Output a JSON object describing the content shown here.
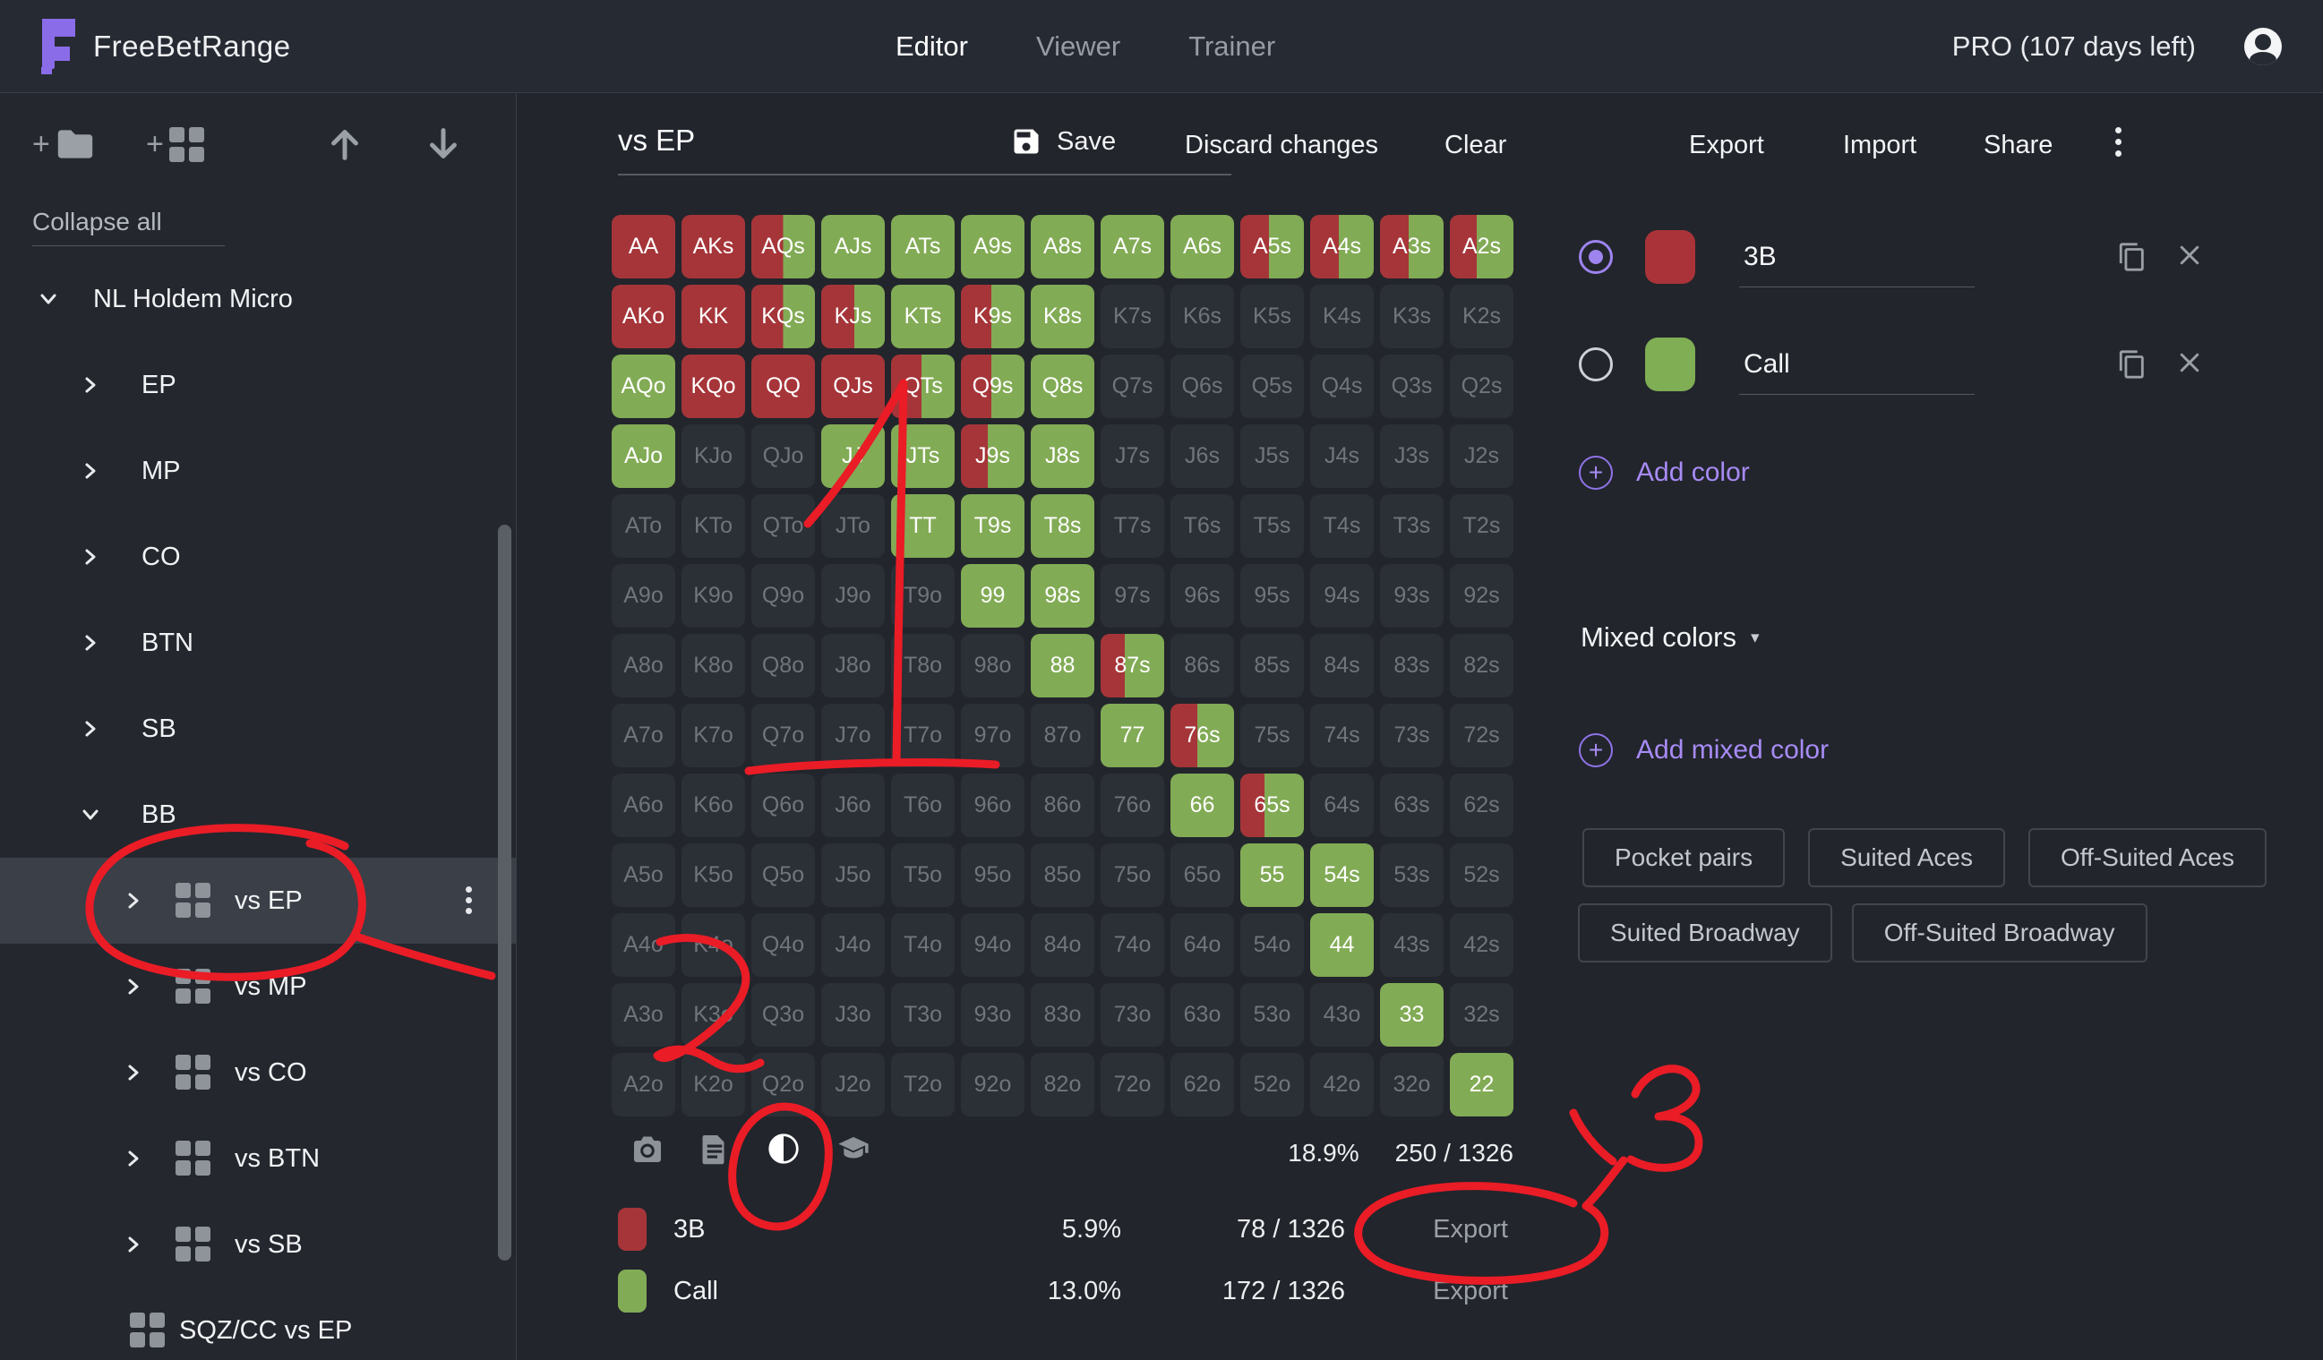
{
  "topbar": {
    "brand": "FreeBetRange",
    "tabs": [
      {
        "label": "Editor",
        "active": true
      },
      {
        "label": "Viewer",
        "active": false
      },
      {
        "label": "Trainer",
        "active": false
      }
    ],
    "plan": "PRO (107 days left)"
  },
  "sidebar": {
    "collapse_all": "Collapse all",
    "tree": [
      {
        "label": "NL Holdem Micro",
        "level": 0,
        "chevron": "down",
        "icon": false,
        "selected": false,
        "kebab": false
      },
      {
        "label": "EP",
        "level": 1,
        "chevron": "right",
        "icon": false,
        "selected": false,
        "kebab": false
      },
      {
        "label": "MP",
        "level": 1,
        "chevron": "right",
        "icon": false,
        "selected": false,
        "kebab": false
      },
      {
        "label": "CO",
        "level": 1,
        "chevron": "right",
        "icon": false,
        "selected": false,
        "kebab": false
      },
      {
        "label": "BTN",
        "level": 1,
        "chevron": "right",
        "icon": false,
        "selected": false,
        "kebab": false
      },
      {
        "label": "SB",
        "level": 1,
        "chevron": "right",
        "icon": false,
        "selected": false,
        "kebab": false
      },
      {
        "label": "BB",
        "level": 1,
        "chevron": "down",
        "icon": false,
        "selected": false,
        "kebab": false
      },
      {
        "label": "vs EP",
        "level": 2,
        "chevron": "right",
        "icon": true,
        "selected": true,
        "kebab": true
      },
      {
        "label": "vs MP",
        "level": 2,
        "chevron": "right",
        "icon": true,
        "selected": false,
        "kebab": false
      },
      {
        "label": "vs CO",
        "level": 2,
        "chevron": "right",
        "icon": true,
        "selected": false,
        "kebab": false
      },
      {
        "label": "vs BTN",
        "level": 2,
        "chevron": "right",
        "icon": true,
        "selected": false,
        "kebab": false
      },
      {
        "label": "vs SB",
        "level": 2,
        "chevron": "right",
        "icon": true,
        "selected": false,
        "kebab": false
      },
      {
        "label": "SQZ/CC vs EP",
        "level": 2,
        "chevron": null,
        "icon": true,
        "selected": false,
        "kebab": false
      }
    ]
  },
  "toolbar": {
    "title": "vs EP",
    "save_label": "Save",
    "discard_label": "Discard changes",
    "clear_label": "Clear",
    "export_label": "Export",
    "import_label": "Import",
    "share_label": "Share"
  },
  "grid": {
    "rows": [
      [
        [
          "AA",
          "r"
        ],
        [
          "AKs",
          "r"
        ],
        [
          "AQs",
          "s",
          50
        ],
        [
          "AJs",
          "g"
        ],
        [
          "ATs",
          "g"
        ],
        [
          "A9s",
          "g"
        ],
        [
          "A8s",
          "g"
        ],
        [
          "A7s",
          "g"
        ],
        [
          "A6s",
          "g"
        ],
        [
          "A5s",
          "s",
          45
        ],
        [
          "A4s",
          "s",
          45
        ],
        [
          "A3s",
          "s",
          45
        ],
        [
          "A2s",
          "s",
          42
        ]
      ],
      [
        [
          "AKo",
          "r"
        ],
        [
          "KK",
          "r"
        ],
        [
          "KQs",
          "s",
          50
        ],
        [
          "KJs",
          "s",
          52
        ],
        [
          "KTs",
          "g"
        ],
        [
          "K9s",
          "s",
          48
        ],
        [
          "K8s",
          "g"
        ],
        [
          "K7s",
          "o"
        ],
        [
          "K6s",
          "o"
        ],
        [
          "K5s",
          "o"
        ],
        [
          "K4s",
          "o"
        ],
        [
          "K3s",
          "o"
        ],
        [
          "K2s",
          "o"
        ]
      ],
      [
        [
          "AQo",
          "g"
        ],
        [
          "KQo",
          "r"
        ],
        [
          "QQ",
          "r"
        ],
        [
          "QJs",
          "r"
        ],
        [
          "QTs",
          "s",
          48
        ],
        [
          "Q9s",
          "s",
          48
        ],
        [
          "Q8s",
          "g"
        ],
        [
          "Q7s",
          "o"
        ],
        [
          "Q6s",
          "o"
        ],
        [
          "Q5s",
          "o"
        ],
        [
          "Q4s",
          "o"
        ],
        [
          "Q3s",
          "o"
        ],
        [
          "Q2s",
          "o"
        ]
      ],
      [
        [
          "AJo",
          "g"
        ],
        [
          "KJo",
          "o"
        ],
        [
          "QJo",
          "o"
        ],
        [
          "JJ",
          "g"
        ],
        [
          "JTs",
          "g"
        ],
        [
          "J9s",
          "s",
          42
        ],
        [
          "J8s",
          "g"
        ],
        [
          "J7s",
          "o"
        ],
        [
          "J6s",
          "o"
        ],
        [
          "J5s",
          "o"
        ],
        [
          "J4s",
          "o"
        ],
        [
          "J3s",
          "o"
        ],
        [
          "J2s",
          "o"
        ]
      ],
      [
        [
          "ATo",
          "o"
        ],
        [
          "KTo",
          "o"
        ],
        [
          "QTo",
          "o"
        ],
        [
          "JTo",
          "o"
        ],
        [
          "TT",
          "g"
        ],
        [
          "T9s",
          "g"
        ],
        [
          "T8s",
          "g"
        ],
        [
          "T7s",
          "o"
        ],
        [
          "T6s",
          "o"
        ],
        [
          "T5s",
          "o"
        ],
        [
          "T4s",
          "o"
        ],
        [
          "T3s",
          "o"
        ],
        [
          "T2s",
          "o"
        ]
      ],
      [
        [
          "A9o",
          "o"
        ],
        [
          "K9o",
          "o"
        ],
        [
          "Q9o",
          "o"
        ],
        [
          "J9o",
          "o"
        ],
        [
          "T9o",
          "o"
        ],
        [
          "99",
          "g"
        ],
        [
          "98s",
          "g"
        ],
        [
          "97s",
          "o"
        ],
        [
          "96s",
          "o"
        ],
        [
          "95s",
          "o"
        ],
        [
          "94s",
          "o"
        ],
        [
          "93s",
          "o"
        ],
        [
          "92s",
          "o"
        ]
      ],
      [
        [
          "A8o",
          "o"
        ],
        [
          "K8o",
          "o"
        ],
        [
          "Q8o",
          "o"
        ],
        [
          "J8o",
          "o"
        ],
        [
          "T8o",
          "o"
        ],
        [
          "98o",
          "o"
        ],
        [
          "88",
          "g"
        ],
        [
          "87s",
          "s",
          38
        ],
        [
          "86s",
          "o"
        ],
        [
          "85s",
          "o"
        ],
        [
          "84s",
          "o"
        ],
        [
          "83s",
          "o"
        ],
        [
          "82s",
          "o"
        ]
      ],
      [
        [
          "A7o",
          "o"
        ],
        [
          "K7o",
          "o"
        ],
        [
          "Q7o",
          "o"
        ],
        [
          "J7o",
          "o"
        ],
        [
          "T7o",
          "o"
        ],
        [
          "97o",
          "o"
        ],
        [
          "87o",
          "o"
        ],
        [
          "77",
          "g"
        ],
        [
          "76s",
          "s",
          42
        ],
        [
          "75s",
          "o"
        ],
        [
          "74s",
          "o"
        ],
        [
          "73s",
          "o"
        ],
        [
          "72s",
          "o"
        ]
      ],
      [
        [
          "A6o",
          "o"
        ],
        [
          "K6o",
          "o"
        ],
        [
          "Q6o",
          "o"
        ],
        [
          "J6o",
          "o"
        ],
        [
          "T6o",
          "o"
        ],
        [
          "96o",
          "o"
        ],
        [
          "86o",
          "o"
        ],
        [
          "76o",
          "o"
        ],
        [
          "66",
          "g"
        ],
        [
          "65s",
          "s",
          38
        ],
        [
          "64s",
          "o"
        ],
        [
          "63s",
          "o"
        ],
        [
          "62s",
          "o"
        ]
      ],
      [
        [
          "A5o",
          "o"
        ],
        [
          "K5o",
          "o"
        ],
        [
          "Q5o",
          "o"
        ],
        [
          "J5o",
          "o"
        ],
        [
          "T5o",
          "o"
        ],
        [
          "95o",
          "o"
        ],
        [
          "85o",
          "o"
        ],
        [
          "75o",
          "o"
        ],
        [
          "65o",
          "o"
        ],
        [
          "55",
          "g"
        ],
        [
          "54s",
          "g"
        ],
        [
          "53s",
          "o"
        ],
        [
          "52s",
          "o"
        ]
      ],
      [
        [
          "A4o",
          "o"
        ],
        [
          "K4o",
          "o"
        ],
        [
          "Q4o",
          "o"
        ],
        [
          "J4o",
          "o"
        ],
        [
          "T4o",
          "o"
        ],
        [
          "94o",
          "o"
        ],
        [
          "84o",
          "o"
        ],
        [
          "74o",
          "o"
        ],
        [
          "64o",
          "o"
        ],
        [
          "54o",
          "o"
        ],
        [
          "44",
          "g"
        ],
        [
          "43s",
          "o"
        ],
        [
          "42s",
          "o"
        ]
      ],
      [
        [
          "A3o",
          "o"
        ],
        [
          "K3o",
          "o"
        ],
        [
          "Q3o",
          "o"
        ],
        [
          "J3o",
          "o"
        ],
        [
          "T3o",
          "o"
        ],
        [
          "93o",
          "o"
        ],
        [
          "83o",
          "o"
        ],
        [
          "73o",
          "o"
        ],
        [
          "63o",
          "o"
        ],
        [
          "53o",
          "o"
        ],
        [
          "43o",
          "o"
        ],
        [
          "33",
          "g"
        ],
        [
          "32s",
          "o"
        ]
      ],
      [
        [
          "A2o",
          "o"
        ],
        [
          "K2o",
          "o"
        ],
        [
          "Q2o",
          "o"
        ],
        [
          "J2o",
          "o"
        ],
        [
          "T2o",
          "o"
        ],
        [
          "92o",
          "o"
        ],
        [
          "82o",
          "o"
        ],
        [
          "72o",
          "o"
        ],
        [
          "62o",
          "o"
        ],
        [
          "52o",
          "o"
        ],
        [
          "42o",
          "o"
        ],
        [
          "32o",
          "o"
        ],
        [
          "22",
          "g"
        ]
      ]
    ]
  },
  "footer_stats": {
    "pct": "18.9%",
    "count": "250 / 1326"
  },
  "legend": [
    {
      "name": "3B",
      "color": "#a63539",
      "pct": "5.9%",
      "count": "78 / 1326",
      "export_label": "Export"
    },
    {
      "name": "Call",
      "color": "#82ab55",
      "pct": "13.0%",
      "count": "172 / 1326",
      "export_label": "Export"
    }
  ],
  "panel": {
    "colors": [
      {
        "name": "3B",
        "color": "#a93338",
        "selected": true
      },
      {
        "name": "Call",
        "color": "#7fae55",
        "selected": false
      }
    ],
    "add_color": "Add color",
    "mixed_header": "Mixed colors",
    "add_mixed": "Add mixed color",
    "quick_row1": [
      "Pocket pairs",
      "Suited Aces",
      "Off-Suited Aces"
    ],
    "quick_row2": [
      "Suited Broadway",
      "Off-Suited Broadway"
    ]
  },
  "colors": {
    "cell_red": "#a63539",
    "cell_green": "#82ab55",
    "accent_purple": "#9b7ff0",
    "annotation_red": "#ea1c26"
  }
}
